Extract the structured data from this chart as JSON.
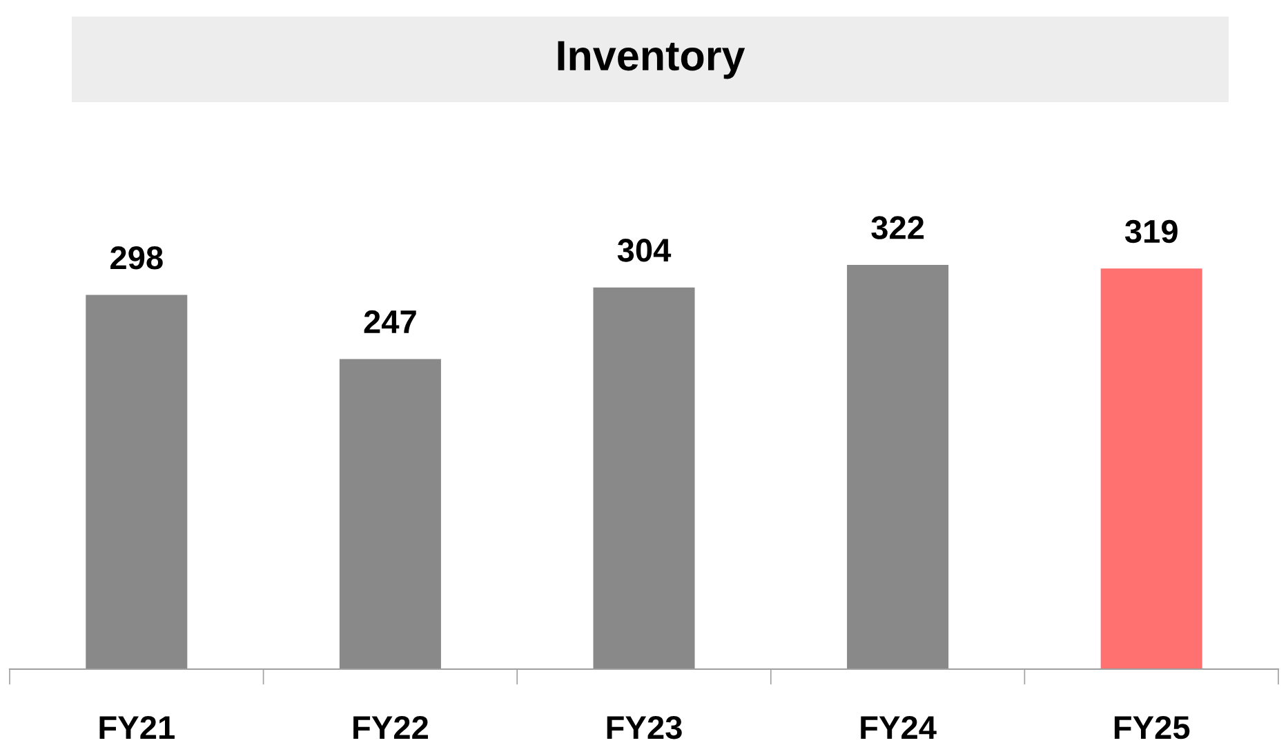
{
  "chart_data": {
    "type": "bar",
    "title": "Inventory",
    "categories": [
      "FY21",
      "FY22",
      "FY23",
      "FY24",
      "FY25"
    ],
    "values": [
      298,
      247,
      304,
      322,
      319
    ],
    "colors": [
      "#898989",
      "#898989",
      "#898989",
      "#898989",
      "#ff7171"
    ],
    "data_labels": true,
    "grid": false,
    "legend": false
  }
}
